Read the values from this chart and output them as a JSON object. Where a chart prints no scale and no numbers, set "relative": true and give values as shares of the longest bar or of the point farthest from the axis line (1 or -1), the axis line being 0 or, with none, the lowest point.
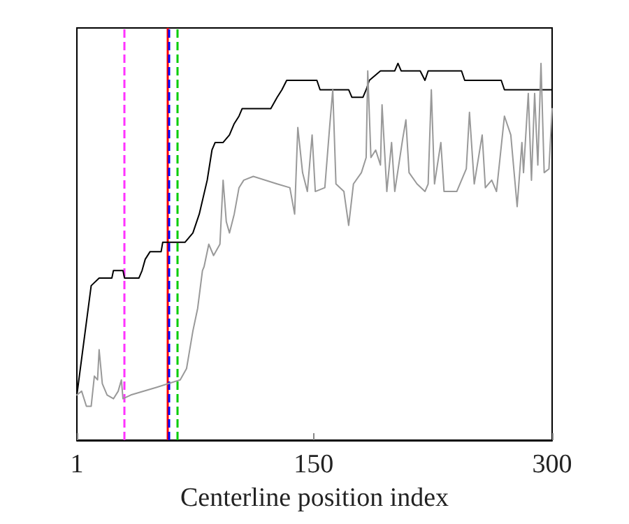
{
  "chart_data": {
    "type": "line",
    "xlabel": "Centerline position index",
    "relative": true,
    "xlim": [
      1,
      300
    ],
    "xticks": [
      1,
      150,
      300
    ],
    "tick_labels": "x",
    "grid": false,
    "marker": "none",
    "line_style": "solid",
    "series": [
      {
        "color": "#000000",
        "x": [
          1,
          10,
          15,
          23,
          24,
          30,
          31,
          40,
          42,
          44,
          47,
          54,
          55,
          69,
          74,
          78,
          83,
          86,
          88,
          93,
          97,
          100,
          103,
          105,
          123,
          127,
          130,
          133,
          152,
          154,
          172,
          174,
          181,
          183,
          185,
          192,
          201,
          203,
          205,
          217,
          220,
          222,
          243,
          245,
          268,
          270,
          300
        ],
        "values": [
          0.12,
          0.41,
          0.43,
          0.43,
          0.45,
          0.45,
          0.43,
          0.43,
          0.45,
          0.48,
          0.5,
          0.5,
          0.525,
          0.525,
          0.55,
          0.6,
          0.69,
          0.77,
          0.79,
          0.79,
          0.81,
          0.84,
          0.86,
          0.88,
          0.88,
          0.91,
          0.93,
          0.955,
          0.955,
          0.93,
          0.93,
          0.91,
          0.91,
          0.93,
          0.955,
          0.98,
          0.98,
          1.0,
          0.98,
          0.98,
          0.955,
          0.98,
          0.98,
          0.955,
          0.955,
          0.93,
          0.93
        ]
      },
      {
        "color": "#999999",
        "x": [
          1,
          4,
          7,
          10,
          12,
          14,
          15,
          17,
          20,
          24,
          27,
          29,
          30,
          35,
          51,
          66,
          70,
          74,
          77,
          80,
          81,
          84,
          87,
          91,
          93,
          95,
          97,
          100,
          103,
          106,
          112,
          127,
          135,
          138,
          140,
          143,
          146,
          149,
          151,
          157,
          160,
          162,
          164,
          169,
          172,
          175,
          180,
          183,
          184,
          186,
          189,
          192,
          193,
          196,
          199,
          201,
          206,
          208,
          210,
          215,
          220,
          222,
          224,
          226,
          230,
          232,
          240,
          246,
          248,
          251,
          256,
          258,
          262,
          265,
          270,
          274,
          278,
          281,
          282,
          285,
          287,
          289,
          291,
          293,
          295,
          298,
          300
        ],
        "values": [
          0.12,
          0.13,
          0.09,
          0.09,
          0.17,
          0.16,
          0.24,
          0.15,
          0.12,
          0.11,
          0.13,
          0.16,
          0.11,
          0.12,
          0.14,
          0.16,
          0.19,
          0.29,
          0.35,
          0.45,
          0.46,
          0.52,
          0.49,
          0.52,
          0.69,
          0.58,
          0.55,
          0.6,
          0.67,
          0.69,
          0.7,
          0.68,
          0.67,
          0.6,
          0.83,
          0.71,
          0.66,
          0.81,
          0.66,
          0.67,
          0.83,
          0.93,
          0.68,
          0.66,
          0.57,
          0.68,
          0.71,
          0.75,
          0.98,
          0.75,
          0.77,
          0.73,
          0.89,
          0.66,
          0.79,
          0.66,
          0.8,
          0.85,
          0.71,
          0.68,
          0.66,
          0.68,
          0.93,
          0.68,
          0.79,
          0.66,
          0.66,
          0.72,
          0.87,
          0.68,
          0.81,
          0.67,
          0.69,
          0.66,
          0.86,
          0.81,
          0.62,
          0.79,
          0.71,
          0.92,
          0.69,
          0.92,
          0.73,
          1.0,
          0.71,
          0.72,
          0.88
        ]
      }
    ],
    "ref_lines": [
      {
        "axis": "x",
        "value": 31,
        "color": "#ff33ff",
        "line_style": "dashed"
      },
      {
        "axis": "x",
        "value": 58,
        "color": "#ff0000",
        "line_style": "solid"
      },
      {
        "axis": "x",
        "value": 59,
        "color": "#0000ff",
        "line_style": "dashed"
      },
      {
        "axis": "x",
        "value": 64,
        "color": "#00cc00",
        "line_style": "dashed"
      }
    ]
  }
}
